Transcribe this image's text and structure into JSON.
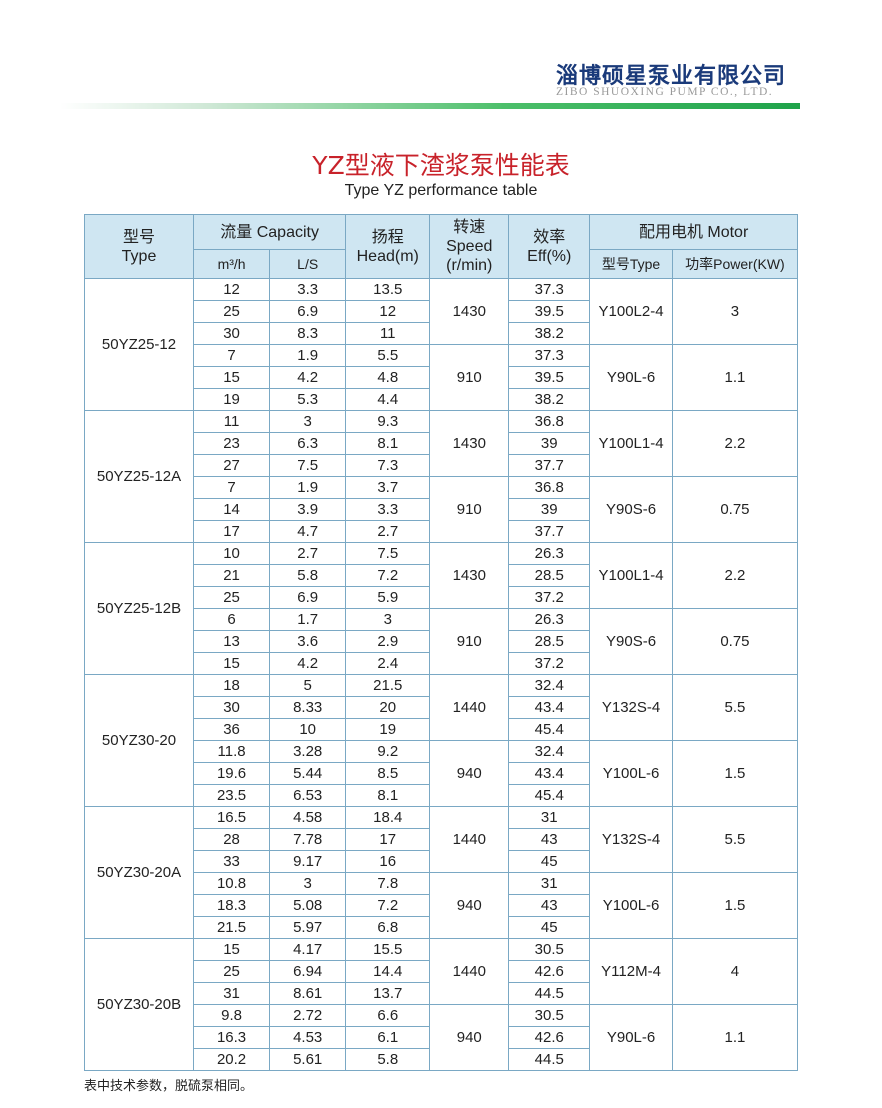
{
  "company": {
    "name_cn": "淄博硕星泵业有限公司",
    "name_en": "ZIBO SHUOXING PUMP CO., LTD."
  },
  "title": "YZ型液下渣浆泵性能表",
  "subtitle": "Type YZ performance table",
  "headers": {
    "type": "型号",
    "type_en": "Type",
    "capacity": "流量 Capacity",
    "m3h": "m³/h",
    "ls": "L/S",
    "head_cn": "扬程",
    "head_en": "Head(m)",
    "speed_cn": "转速",
    "speed_en": "Speed",
    "speed_unit": "(r/min)",
    "eff_cn": "效率",
    "eff_en": "Eff(%)",
    "motor": "配用电机 Motor",
    "motor_type": "型号Type",
    "motor_power": "功率Power(KW)"
  },
  "rows": [
    {
      "model": "50YZ25-12",
      "subs": [
        {
          "speed": "1430",
          "motor": "Y100L2-4",
          "power": "3",
          "points": [
            [
              "12",
              "3.3",
              "13.5",
              "37.3"
            ],
            [
              "25",
              "6.9",
              "12",
              "39.5"
            ],
            [
              "30",
              "8.3",
              "11",
              "38.2"
            ]
          ]
        },
        {
          "speed": "910",
          "motor": "Y90L-6",
          "power": "1.1",
          "points": [
            [
              "7",
              "1.9",
              "5.5",
              "37.3"
            ],
            [
              "15",
              "4.2",
              "4.8",
              "39.5"
            ],
            [
              "19",
              "5.3",
              "4.4",
              "38.2"
            ]
          ]
        }
      ]
    },
    {
      "model": "50YZ25-12A",
      "subs": [
        {
          "speed": "1430",
          "motor": "Y100L1-4",
          "power": "2.2",
          "points": [
            [
              "11",
              "3",
              "9.3",
              "36.8"
            ],
            [
              "23",
              "6.3",
              "8.1",
              "39"
            ],
            [
              "27",
              "7.5",
              "7.3",
              "37.7"
            ]
          ]
        },
        {
          "speed": "910",
          "motor": "Y90S-6",
          "power": "0.75",
          "points": [
            [
              "7",
              "1.9",
              "3.7",
              "36.8"
            ],
            [
              "14",
              "3.9",
              "3.3",
              "39"
            ],
            [
              "17",
              "4.7",
              "2.7",
              "37.7"
            ]
          ]
        }
      ]
    },
    {
      "model": "50YZ25-12B",
      "subs": [
        {
          "speed": "1430",
          "motor": "Y100L1-4",
          "power": "2.2",
          "points": [
            [
              "10",
              "2.7",
              "7.5",
              "26.3"
            ],
            [
              "21",
              "5.8",
              "7.2",
              "28.5"
            ],
            [
              "25",
              "6.9",
              "5.9",
              "37.2"
            ]
          ]
        },
        {
          "speed": "910",
          "motor": "Y90S-6",
          "power": "0.75",
          "points": [
            [
              "6",
              "1.7",
              "3",
              "26.3"
            ],
            [
              "13",
              "3.6",
              "2.9",
              "28.5"
            ],
            [
              "15",
              "4.2",
              "2.4",
              "37.2"
            ]
          ]
        }
      ]
    },
    {
      "model": "50YZ30-20",
      "subs": [
        {
          "speed": "1440",
          "motor": "Y132S-4",
          "power": "5.5",
          "points": [
            [
              "18",
              "5",
              "21.5",
              "32.4"
            ],
            [
              "30",
              "8.33",
              "20",
              "43.4"
            ],
            [
              "36",
              "10",
              "19",
              "45.4"
            ]
          ]
        },
        {
          "speed": "940",
          "motor": "Y100L-6",
          "power": "1.5",
          "points": [
            [
              "11.8",
              "3.28",
              "9.2",
              "32.4"
            ],
            [
              "19.6",
              "5.44",
              "8.5",
              "43.4"
            ],
            [
              "23.5",
              "6.53",
              "8.1",
              "45.4"
            ]
          ]
        }
      ]
    },
    {
      "model": "50YZ30-20A",
      "subs": [
        {
          "speed": "1440",
          "motor": "Y132S-4",
          "power": "5.5",
          "points": [
            [
              "16.5",
              "4.58",
              "18.4",
              "31"
            ],
            [
              "28",
              "7.78",
              "17",
              "43"
            ],
            [
              "33",
              "9.17",
              "16",
              "45"
            ]
          ]
        },
        {
          "speed": "940",
          "motor": "Y100L-6",
          "power": "1.5",
          "points": [
            [
              "10.8",
              "3",
              "7.8",
              "31"
            ],
            [
              "18.3",
              "5.08",
              "7.2",
              "43"
            ],
            [
              "21.5",
              "5.97",
              "6.8",
              "45"
            ]
          ]
        }
      ]
    },
    {
      "model": "50YZ30-20B",
      "subs": [
        {
          "speed": "1440",
          "motor": "Y112M-4",
          "power": "4",
          "points": [
            [
              "15",
              "4.17",
              "15.5",
              "30.5"
            ],
            [
              "25",
              "6.94",
              "14.4",
              "42.6"
            ],
            [
              "31",
              "8.61",
              "13.7",
              "44.5"
            ]
          ]
        },
        {
          "speed": "940",
          "motor": "Y90L-6",
          "power": "1.1",
          "points": [
            [
              "9.8",
              "2.72",
              "6.6",
              "30.5"
            ],
            [
              "16.3",
              "4.53",
              "6.1",
              "42.6"
            ],
            [
              "20.2",
              "5.61",
              "5.8",
              "44.5"
            ]
          ]
        }
      ]
    }
  ],
  "note": "表中技术参数，脱硫泵相同。",
  "colors": {
    "title": "#c8222a",
    "header_bg": "#cfe6f2",
    "border": "#7aa8c4",
    "brand": "#1a3a7a"
  }
}
